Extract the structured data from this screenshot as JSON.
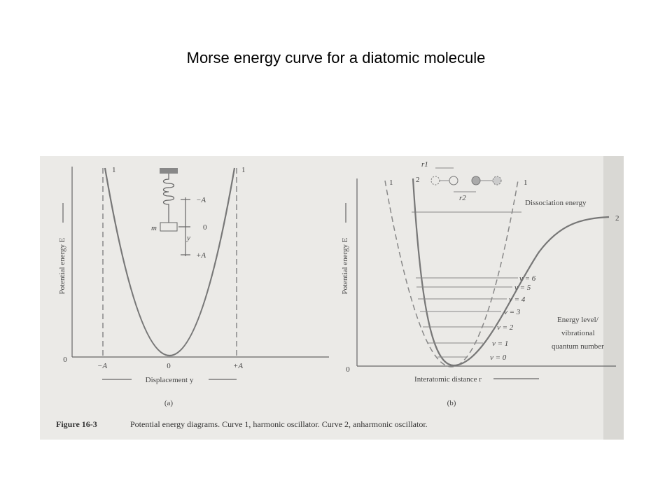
{
  "slide": {
    "title": "Morse energy curve for a diatomic molecule"
  },
  "panel_a": {
    "y_axis_label": "Potential energy E",
    "origin": "0",
    "x_ticks": [
      "−A",
      "0",
      "+A"
    ],
    "x_axis_label": "Displacement y",
    "curve_labels": [
      "1",
      "1"
    ],
    "spring_labels": {
      "minus_a": "−A",
      "zero": "0",
      "plus_a": "+A",
      "mass": "m",
      "y": "y"
    },
    "caption": "(a)"
  },
  "panel_b": {
    "y_axis_label": "Potential energy E",
    "origin": "0",
    "x_axis_label": "Interatomic distance r",
    "curve_labels": [
      "1",
      "2",
      "1",
      "2"
    ],
    "dissociation": "Dissociation energy",
    "levels": [
      "v = 0",
      "v = 1",
      "v = 2",
      "v = 3",
      "v = 4",
      "v = 5",
      "v = 6"
    ],
    "level_note": [
      "Energy level/",
      "vibrational",
      "quantum number"
    ],
    "r_labels": [
      "r1",
      "r2"
    ],
    "caption": "(b)"
  },
  "figure_caption": {
    "number": "Figure 16-3",
    "text": "Potential energy diagrams. Curve 1, harmonic oscillator. Curve 2, anharmonic oscillator."
  }
}
